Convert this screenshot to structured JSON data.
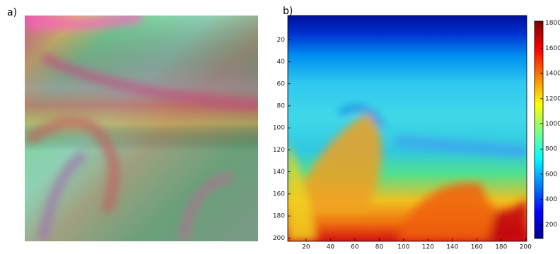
{
  "chart_data": {
    "type": "heatmap",
    "panel_labels": [
      "a)",
      "b)"
    ],
    "xlim": [
      5,
      201
    ],
    "xticks": [
      20,
      40,
      60,
      80,
      100,
      120,
      140,
      160,
      180,
      200
    ],
    "ylim": [
      -2,
      203
    ],
    "yticks": [
      20,
      40,
      60,
      80,
      100,
      120,
      140,
      160,
      180,
      200
    ],
    "colorbar": {
      "lim": [
        90,
        1815
      ],
      "ticks": [
        200,
        400,
        600,
        800,
        1000,
        1200,
        1400,
        1600,
        1800
      ]
    }
  }
}
